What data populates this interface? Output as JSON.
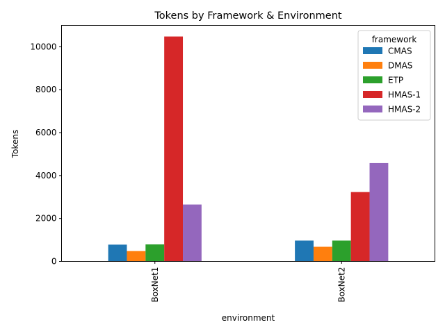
{
  "chart_data": {
    "type": "bar",
    "title": "Tokens by Framework & Environment",
    "xlabel": "environment",
    "ylabel": "Tokens",
    "categories": [
      "BoxNet1",
      "BoxNet2"
    ],
    "series": [
      {
        "name": "CMAS",
        "color": "#1f77b4",
        "values": [
          780,
          970
        ]
      },
      {
        "name": "DMAS",
        "color": "#ff7f0e",
        "values": [
          480,
          680
        ]
      },
      {
        "name": "ETP",
        "color": "#2ca02c",
        "values": [
          790,
          970
        ]
      },
      {
        "name": "HMAS-1",
        "color": "#d62728",
        "values": [
          10480,
          3230
        ]
      },
      {
        "name": "HMAS-2",
        "color": "#9467bd",
        "values": [
          2650,
          4580
        ]
      }
    ],
    "ylim": [
      0,
      11000
    ],
    "yticks": [
      0,
      2000,
      4000,
      6000,
      8000,
      10000
    ],
    "legend_title": "framework",
    "legend_position": "top-right",
    "grid": false
  }
}
